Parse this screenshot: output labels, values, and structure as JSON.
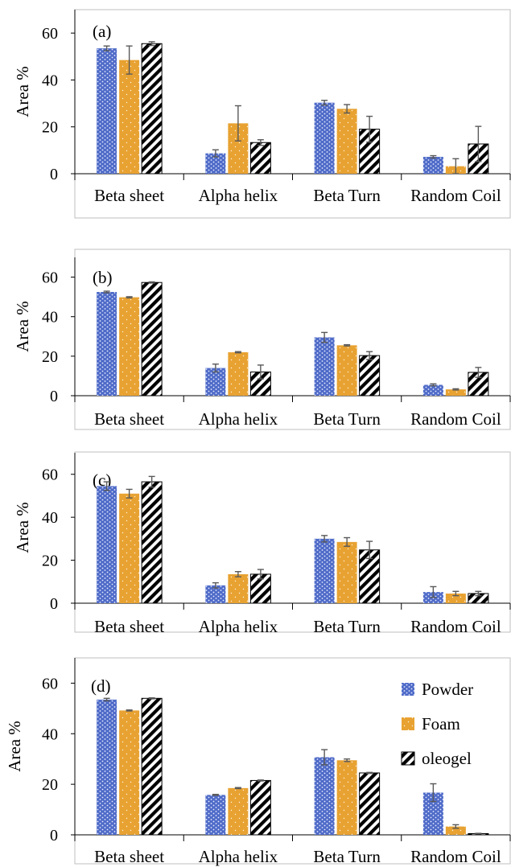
{
  "colors": {
    "powder_fill": "#4F6BC8",
    "powder_dot": "#E6ECFF",
    "foam_fill": "#E8A232",
    "foam_dot": "#FFF3DE",
    "oleogel_stripe": "#000000",
    "error_bar": "#595959",
    "axis": "#000000"
  },
  "legend": {
    "items": [
      {
        "label": "Powder",
        "pattern": "powder"
      },
      {
        "label": "Foam",
        "pattern": "foam"
      },
      {
        "label": "oleogel",
        "pattern": "oleogel"
      }
    ]
  },
  "chart_data": [
    {
      "type": "bar",
      "panel_label": "(a)",
      "ylabel": "Area %",
      "xlabel": "",
      "ylim": [
        0,
        70
      ],
      "yticks": [
        0,
        20,
        40,
        60
      ],
      "categories": [
        "Beta sheet",
        "Alpha helix",
        "Beta Turn",
        "Random Coil"
      ],
      "series": [
        {
          "name": "Powder",
          "values": [
            53.5,
            8.7,
            30.3,
            7.2
          ],
          "errors": [
            1.0,
            1.5,
            1.0,
            0.5
          ]
        },
        {
          "name": "Foam",
          "values": [
            48.5,
            21.5,
            27.7,
            3.2
          ],
          "errors": [
            6.0,
            7.5,
            1.8,
            3.2
          ]
        },
        {
          "name": "oleogel",
          "values": [
            55.5,
            13.3,
            19.0,
            12.7
          ],
          "errors": [
            0.8,
            1.2,
            5.5,
            7.5
          ]
        }
      ]
    },
    {
      "type": "bar",
      "panel_label": "(b)",
      "ylabel": "Area %",
      "xlabel": "",
      "ylim": [
        0,
        70
      ],
      "yticks": [
        0,
        20,
        40,
        60
      ],
      "categories": [
        "Beta sheet",
        "Alpha helix",
        "Beta Turn",
        "Random Coil"
      ],
      "series": [
        {
          "name": "Powder",
          "values": [
            52.5,
            14.0,
            29.5,
            5.5
          ],
          "errors": [
            0.4,
            2.0,
            2.5,
            0.5
          ]
        },
        {
          "name": "Foam",
          "values": [
            49.8,
            22.0,
            25.5,
            3.2
          ],
          "errors": [
            0.3,
            0.3,
            0.3,
            0.3
          ]
        },
        {
          "name": "oleogel",
          "values": [
            57.3,
            12.0,
            20.3,
            11.8
          ],
          "errors": [
            0.3,
            3.5,
            2.0,
            2.5
          ]
        }
      ]
    },
    {
      "type": "bar",
      "panel_label": "(c)",
      "ylabel": "Area %",
      "xlabel": "",
      "ylim": [
        0,
        70
      ],
      "yticks": [
        0,
        20,
        40,
        60
      ],
      "categories": [
        "Beta sheet",
        "Alpha helix",
        "Beta Turn",
        "Random Coil"
      ],
      "series": [
        {
          "name": "Powder",
          "values": [
            54.5,
            8.3,
            30.0,
            5.2
          ],
          "errors": [
            2.0,
            1.2,
            1.5,
            2.5
          ]
        },
        {
          "name": "Foam",
          "values": [
            51.0,
            13.5,
            28.5,
            4.5
          ],
          "errors": [
            2.0,
            1.2,
            2.0,
            1.0
          ]
        },
        {
          "name": "oleogel",
          "values": [
            56.5,
            13.5,
            24.8,
            4.5
          ],
          "errors": [
            2.5,
            2.2,
            4.0,
            1.0
          ]
        }
      ]
    },
    {
      "type": "bar",
      "panel_label": "(d)",
      "ylabel": "Area %",
      "xlabel": "",
      "ylim": [
        0,
        70
      ],
      "yticks": [
        0,
        20,
        40,
        60
      ],
      "legend_position": "top-right",
      "categories": [
        "Beta sheet",
        "Alpha helix",
        "Beta Turn",
        "Random Coil"
      ],
      "series": [
        {
          "name": "Powder",
          "values": [
            53.5,
            15.8,
            30.7,
            16.7
          ],
          "errors": [
            0.5,
            0.2,
            3.0,
            3.5
          ]
        },
        {
          "name": "Foam",
          "values": [
            49.2,
            18.5,
            29.5,
            3.3
          ],
          "errors": [
            0.2,
            0.2,
            0.5,
            0.7
          ]
        },
        {
          "name": "oleogel",
          "values": [
            54.0,
            21.5,
            24.5,
            0.5
          ],
          "errors": [
            0.2,
            0.2,
            0.2,
            0.1
          ]
        }
      ]
    }
  ]
}
